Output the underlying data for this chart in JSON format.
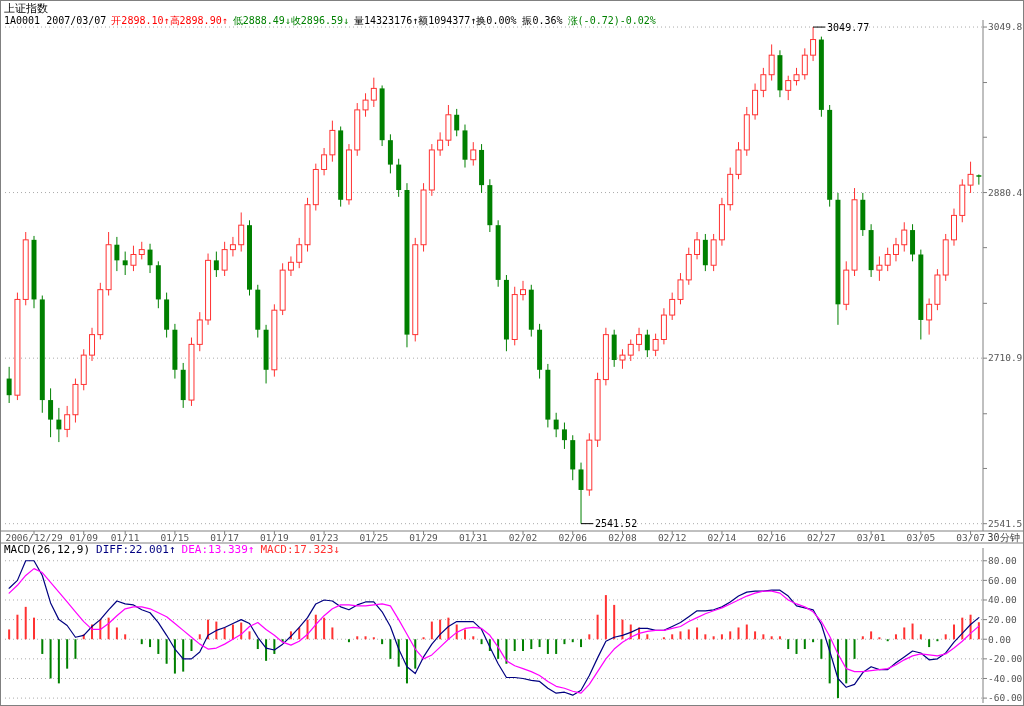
{
  "chart_data": [
    {
      "type": "candlestick",
      "title": "上证指数",
      "xlabel": "30分钟",
      "annotations": [
        "1A0001 2007/03/07",
        "开2898.10↑高2898.90↑",
        "低2888.49↓收2896.59↓",
        "量14323176↑额1094377↑换0.00% 振0.36%",
        "涨(-0.72)-0.02%",
        "3049.77",
        "2541.52"
      ],
      "categories": [
        null,
        null,
        null,
        "2006/12/29",
        null,
        null,
        null,
        null,
        null,
        "01/09",
        null,
        null,
        null,
        null,
        "01/11",
        null,
        null,
        null,
        null,
        null,
        "01/15",
        null,
        null,
        null,
        null,
        null,
        "01/17",
        null,
        null,
        null,
        null,
        null,
        "01/19",
        null,
        null,
        null,
        null,
        null,
        "01/23",
        null,
        null,
        null,
        null,
        null,
        "01/25",
        null,
        null,
        null,
        null,
        null,
        "01/29",
        null,
        null,
        null,
        null,
        null,
        "01/31",
        null,
        null,
        null,
        null,
        null,
        "02/02",
        null,
        null,
        null,
        null,
        null,
        "02/06",
        null,
        null,
        null,
        null,
        null,
        "02/08",
        null,
        null,
        null,
        null,
        null,
        "02/12",
        null,
        null,
        null,
        null,
        null,
        "02/14",
        null,
        null,
        null,
        null,
        null,
        "02/16",
        null,
        null,
        null,
        null,
        null,
        "02/27",
        null,
        null,
        null,
        null,
        null,
        "03/01",
        null,
        null,
        null,
        null,
        null,
        "03/05",
        null,
        null,
        null,
        null,
        null,
        "03/07",
        null
      ],
      "ohlc": [
        [
          2690,
          2702,
          2665,
          2673
        ],
        [
          2673,
          2778,
          2668,
          2771
        ],
        [
          2771,
          2840,
          2765,
          2832
        ],
        [
          2832,
          2836,
          2762,
          2771
        ],
        [
          2771,
          2775,
          2655,
          2668
        ],
        [
          2668,
          2680,
          2630,
          2648
        ],
        [
          2648,
          2660,
          2625,
          2638
        ],
        [
          2638,
          2662,
          2630,
          2653
        ],
        [
          2653,
          2690,
          2645,
          2684
        ],
        [
          2684,
          2720,
          2678,
          2714
        ],
        [
          2714,
          2742,
          2708,
          2735
        ],
        [
          2735,
          2788,
          2730,
          2781
        ],
        [
          2781,
          2840,
          2775,
          2827
        ],
        [
          2827,
          2835,
          2800,
          2811
        ],
        [
          2811,
          2820,
          2796,
          2806
        ],
        [
          2806,
          2826,
          2800,
          2817
        ],
        [
          2817,
          2830,
          2812,
          2822
        ],
        [
          2822,
          2828,
          2798,
          2806
        ],
        [
          2806,
          2810,
          2762,
          2771
        ],
        [
          2771,
          2778,
          2732,
          2740
        ],
        [
          2740,
          2746,
          2690,
          2699
        ],
        [
          2699,
          2706,
          2660,
          2668
        ],
        [
          2668,
          2732,
          2662,
          2725
        ],
        [
          2725,
          2758,
          2718,
          2750
        ],
        [
          2750,
          2818,
          2745,
          2811
        ],
        [
          2811,
          2820,
          2794,
          2801
        ],
        [
          2801,
          2830,
          2795,
          2822
        ],
        [
          2822,
          2835,
          2815,
          2827
        ],
        [
          2827,
          2860,
          2820,
          2847
        ],
        [
          2847,
          2852,
          2775,
          2781
        ],
        [
          2781,
          2786,
          2732,
          2740
        ],
        [
          2740,
          2745,
          2685,
          2699
        ],
        [
          2699,
          2766,
          2692,
          2760
        ],
        [
          2760,
          2808,
          2755,
          2801
        ],
        [
          2801,
          2815,
          2795,
          2809
        ],
        [
          2809,
          2834,
          2803,
          2827
        ],
        [
          2827,
          2875,
          2820,
          2868
        ],
        [
          2868,
          2910,
          2862,
          2904
        ],
        [
          2904,
          2926,
          2898,
          2919
        ],
        [
          2919,
          2954,
          2912,
          2944
        ],
        [
          2944,
          2948,
          2866,
          2873
        ],
        [
          2873,
          2930,
          2868,
          2924
        ],
        [
          2924,
          2972,
          2918,
          2965
        ],
        [
          2965,
          2982,
          2958,
          2975
        ],
        [
          2975,
          2998,
          2968,
          2987
        ],
        [
          2987,
          2990,
          2928,
          2934
        ],
        [
          2934,
          2940,
          2900,
          2909
        ],
        [
          2909,
          2915,
          2876,
          2883
        ],
        [
          2883,
          2890,
          2722,
          2735
        ],
        [
          2735,
          2834,
          2728,
          2827
        ],
        [
          2827,
          2890,
          2820,
          2883
        ],
        [
          2883,
          2930,
          2877,
          2924
        ],
        [
          2924,
          2942,
          2918,
          2934
        ],
        [
          2934,
          2970,
          2928,
          2960
        ],
        [
          2960,
          2966,
          2938,
          2944
        ],
        [
          2944,
          2950,
          2906,
          2914
        ],
        [
          2914,
          2932,
          2908,
          2924
        ],
        [
          2924,
          2930,
          2880,
          2888
        ],
        [
          2888,
          2894,
          2840,
          2847
        ],
        [
          2847,
          2852,
          2784,
          2791
        ],
        [
          2791,
          2796,
          2718,
          2730
        ],
        [
          2730,
          2784,
          2724,
          2776
        ],
        [
          2776,
          2790,
          2770,
          2781
        ],
        [
          2781,
          2786,
          2733,
          2740
        ],
        [
          2740,
          2746,
          2690,
          2699
        ],
        [
          2699,
          2705,
          2640,
          2648
        ],
        [
          2648,
          2655,
          2630,
          2638
        ],
        [
          2638,
          2645,
          2618,
          2627
        ],
        [
          2627,
          2632,
          2586,
          2597
        ],
        [
          2597,
          2604,
          2541.52,
          2576
        ],
        [
          2576,
          2634,
          2570,
          2627
        ],
        [
          2627,
          2696,
          2620,
          2689
        ],
        [
          2689,
          2742,
          2683,
          2735
        ],
        [
          2735,
          2740,
          2702,
          2709
        ],
        [
          2709,
          2720,
          2700,
          2714
        ],
        [
          2714,
          2730,
          2708,
          2725
        ],
        [
          2725,
          2742,
          2718,
          2735
        ],
        [
          2735,
          2740,
          2712,
          2719
        ],
        [
          2719,
          2736,
          2713,
          2730
        ],
        [
          2730,
          2762,
          2725,
          2755
        ],
        [
          2755,
          2778,
          2750,
          2771
        ],
        [
          2771,
          2798,
          2766,
          2791
        ],
        [
          2791,
          2824,
          2786,
          2817
        ],
        [
          2817,
          2840,
          2812,
          2832
        ],
        [
          2832,
          2838,
          2800,
          2806
        ],
        [
          2806,
          2838,
          2800,
          2832
        ],
        [
          2832,
          2875,
          2826,
          2868
        ],
        [
          2868,
          2906,
          2862,
          2899
        ],
        [
          2899,
          2932,
          2894,
          2924
        ],
        [
          2924,
          2968,
          2918,
          2960
        ],
        [
          2960,
          2992,
          2955,
          2985
        ],
        [
          2985,
          3008,
          2978,
          3001
        ],
        [
          3001,
          3032,
          2995,
          3021
        ],
        [
          3021,
          3026,
          2978,
          2985
        ],
        [
          2985,
          3000,
          2975,
          2995
        ],
        [
          2995,
          3008,
          2990,
          3001
        ],
        [
          3001,
          3028,
          2996,
          3021
        ],
        [
          3021,
          3049.77,
          3015,
          3037
        ],
        [
          3037,
          3040,
          2958,
          2965
        ],
        [
          2965,
          2970,
          2866,
          2873
        ],
        [
          2873,
          2880,
          2745,
          2766
        ],
        [
          2766,
          2810,
          2760,
          2801
        ],
        [
          2801,
          2885,
          2795,
          2873
        ],
        [
          2873,
          2880,
          2836,
          2842
        ],
        [
          2842,
          2848,
          2794,
          2801
        ],
        [
          2801,
          2815,
          2790,
          2806
        ],
        [
          2806,
          2824,
          2800,
          2817
        ],
        [
          2817,
          2834,
          2810,
          2827
        ],
        [
          2827,
          2850,
          2820,
          2842
        ],
        [
          2842,
          2848,
          2810,
          2817
        ],
        [
          2817,
          2822,
          2730,
          2750
        ],
        [
          2750,
          2772,
          2735,
          2766
        ],
        [
          2766,
          2802,
          2760,
          2796
        ],
        [
          2796,
          2838,
          2790,
          2832
        ],
        [
          2832,
          2864,
          2826,
          2857
        ],
        [
          2857,
          2894,
          2850,
          2888
        ],
        [
          2888,
          2912,
          2880,
          2899
        ],
        [
          2898.1,
          2898.9,
          2888.49,
          2896.59
        ]
      ],
      "colors": [
        "#008000",
        "#ff3232",
        "#ff3232",
        "#008000",
        "#008000",
        "#008000",
        "#008000",
        "#ff3232",
        "#ff3232",
        "#ff3232",
        "#ff3232",
        "#ff3232",
        "#ff3232",
        "#008000",
        "#008000",
        "#ff3232",
        "#ff3232",
        "#008000",
        "#008000",
        "#008000",
        "#008000",
        "#008000",
        "#ff3232",
        "#ff3232",
        "#ff3232",
        "#008000",
        "#ff3232",
        "#ff3232",
        "#ff3232",
        "#008000",
        "#008000",
        "#008000",
        "#ff3232",
        "#ff3232",
        "#ff3232",
        "#ff3232",
        "#ff3232",
        "#ff3232",
        "#ff3232",
        "#ff3232",
        "#008000",
        "#ff3232",
        "#ff3232",
        "#ff3232",
        "#ff3232",
        "#008000",
        "#008000",
        "#008000",
        "#008000",
        "#ff3232",
        "#ff3232",
        "#ff3232",
        "#ff3232",
        "#ff3232",
        "#008000",
        "#008000",
        "#ff3232",
        "#008000",
        "#008000",
        "#008000",
        "#008000",
        "#ff3232",
        "#ff3232",
        "#008000",
        "#008000",
        "#008000",
        "#008000",
        "#008000",
        "#008000",
        "#008000",
        "#ff3232",
        "#ff3232",
        "#ff3232",
        "#008000",
        "#ff3232",
        "#ff3232",
        "#ff3232",
        "#008000",
        "#ff3232",
        "#ff3232",
        "#ff3232",
        "#ff3232",
        "#ff3232",
        "#ff3232",
        "#008000",
        "#ff3232",
        "#ff3232",
        "#ff3232",
        "#ff3232",
        "#ff3232",
        "#ff3232",
        "#ff3232",
        "#ff3232",
        "#008000",
        "#ff3232",
        "#ff3232",
        "#ff3232",
        "#ff3232",
        "#008000",
        "#008000",
        "#008000",
        "#ff3232",
        "#ff3232",
        "#008000",
        "#008000",
        "#ff3232",
        "#ff3232",
        "#ff3232",
        "#ff3232",
        "#008000",
        "#008000",
        "#ff3232",
        "#ff3232",
        "#ff3232",
        "#ff3232",
        "#ff3232",
        "#ff3232",
        "#008000"
      ],
      "ylim": [
        2534,
        3057
      ],
      "yticks": [
        2541.5,
        {
          "value": 2598,
          "label": null
        },
        {
          "value": 2654,
          "label": null
        },
        2710.9,
        {
          "value": 2767,
          "label": null
        },
        {
          "value": 2824,
          "label": null
        },
        2880.4,
        {
          "value": 2937,
          "label": null
        },
        {
          "value": 2993,
          "label": null
        },
        3049.8
      ],
      "grid": "y"
    },
    {
      "type": "bar",
      "title": "MACD(26,12,9)",
      "legend": "top left",
      "categories": [
        null,
        null,
        null,
        null,
        null,
        null,
        null,
        null,
        null,
        null,
        null,
        null,
        null,
        null,
        null,
        null,
        null,
        null,
        null,
        null,
        null,
        null,
        null,
        null,
        null,
        null,
        null,
        null,
        null,
        null,
        null,
        null,
        null,
        null,
        null,
        null,
        null,
        null,
        null,
        null,
        null,
        null,
        null,
        null,
        null,
        null,
        null,
        null,
        null,
        null,
        null,
        null,
        null,
        null,
        null,
        null,
        null,
        null,
        null,
        null,
        null,
        null,
        null,
        null,
        null,
        null,
        null,
        null,
        null,
        null,
        null,
        null,
        null,
        null,
        null,
        null,
        null,
        null,
        null,
        null,
        null,
        null,
        null,
        null,
        null,
        null,
        null,
        null,
        null,
        null,
        null,
        null,
        null,
        null,
        null,
        null,
        null,
        null,
        null,
        null,
        null,
        null,
        null,
        null,
        null,
        null,
        null,
        null,
        null,
        null,
        null,
        null,
        null,
        null,
        null,
        null,
        null,
        null
      ],
      "series": [
        {
          "name": "DIFF:22.001↑",
          "type": "line",
          "color": "#000080",
          "values": [
            52,
            60,
            80,
            80,
            65,
            37,
            20,
            14,
            2,
            4,
            13,
            20,
            30,
            39,
            36,
            35,
            30,
            27,
            17,
            4,
            -10,
            -20,
            -20,
            -13,
            4,
            9,
            12,
            16,
            20,
            16,
            2,
            -9,
            -11,
            -5,
            3,
            12,
            22,
            36,
            40,
            39,
            33,
            30,
            35,
            38,
            38,
            28,
            13,
            -10,
            -28,
            -35,
            -18,
            -5,
            5,
            13,
            18,
            18,
            18,
            10,
            -8,
            -25,
            -39,
            -39,
            -40,
            -42,
            -43,
            -50,
            -55,
            -54,
            -57,
            -52,
            -37,
            -19,
            -2,
            2,
            4,
            7,
            11,
            11,
            9,
            9,
            13,
            17,
            23,
            29,
            29,
            30,
            33,
            38,
            44,
            48,
            49,
            49,
            50,
            50,
            44,
            34,
            32,
            30,
            15,
            -12,
            -40,
            -49,
            -46,
            -34,
            -28,
            -31,
            -31,
            -24,
            -18,
            -12,
            -14,
            -21,
            -20,
            -14,
            -3,
            6,
            15,
            22.001
          ]
        },
        {
          "name": "DEA:13.339↑",
          "type": "line",
          "color": "#ff00ff",
          "values": [
            47,
            55,
            65,
            72,
            68,
            58,
            48,
            38,
            28,
            18,
            10,
            10,
            16,
            24,
            31,
            33,
            33,
            31,
            27,
            23,
            16,
            9,
            2,
            -5,
            -10,
            -9,
            -5,
            0,
            5,
            13,
            17,
            10,
            4,
            -3,
            -6,
            -2,
            5,
            15,
            24,
            31,
            35,
            35,
            34,
            34,
            35,
            36,
            34,
            20,
            5,
            -10,
            -20,
            -16,
            -8,
            0,
            7,
            11,
            12,
            11,
            4,
            -8,
            -22,
            -27,
            -30,
            -33,
            -37,
            -43,
            -48,
            -50,
            -53,
            -55,
            -46,
            -33,
            -20,
            -10,
            -3,
            2,
            6,
            8,
            9,
            9,
            11,
            13,
            18,
            22,
            26,
            29,
            32,
            36,
            40,
            44,
            47,
            49,
            49,
            47,
            40,
            36,
            33,
            28,
            18,
            3,
            -15,
            -30,
            -33,
            -33,
            -32,
            -31,
            -30,
            -26,
            -21,
            -17,
            -15,
            -16,
            -17,
            -15,
            -9,
            -2,
            6,
            13.339
          ]
        },
        {
          "name": "MACD:17.323↓",
          "type": "bar",
          "values": [
            10,
            25,
            33,
            22,
            -15,
            -40,
            -45,
            -30,
            -20,
            5,
            15,
            20,
            22,
            12,
            5,
            0,
            -5,
            -8,
            -15,
            -25,
            -35,
            -33,
            -12,
            5,
            20,
            18,
            12,
            15,
            17,
            8,
            -10,
            -22,
            -15,
            -3,
            8,
            12,
            20,
            25,
            22,
            12,
            0,
            -3,
            3,
            3,
            2,
            -5,
            -20,
            -28,
            -45,
            -30,
            2,
            18,
            20,
            22,
            15,
            10,
            3,
            -5,
            -12,
            -20,
            -25,
            -12,
            -12,
            -10,
            -8,
            -15,
            -15,
            -5,
            -3,
            -8,
            5,
            25,
            45,
            35,
            20,
            15,
            12,
            5,
            0,
            2,
            5,
            8,
            10,
            12,
            5,
            3,
            5,
            8,
            12,
            15,
            8,
            5,
            3,
            3,
            -10,
            -15,
            -10,
            -3,
            -20,
            -45,
            -60,
            -45,
            -20,
            3,
            8,
            2,
            -2,
            5,
            12,
            16,
            5,
            -8,
            -2,
            5,
            15,
            22,
            25,
            17.323
          ],
          "colors": [
            "#ff3232",
            "#ff3232",
            "#ff3232",
            "#ff3232",
            "#008000",
            "#008000",
            "#008000",
            "#008000",
            "#008000",
            "#ff3232",
            "#ff3232",
            "#ff3232",
            "#ff3232",
            "#ff3232",
            "#ff3232",
            "#ff3232",
            "#008000",
            "#008000",
            "#008000",
            "#008000",
            "#008000",
            "#008000",
            "#008000",
            "#ff3232",
            "#ff3232",
            "#ff3232",
            "#ff3232",
            "#ff3232",
            "#ff3232",
            "#ff3232",
            "#008000",
            "#008000",
            "#008000",
            "#008000",
            "#ff3232",
            "#ff3232",
            "#ff3232",
            "#ff3232",
            "#ff3232",
            "#ff3232",
            "#ff3232",
            "#008000",
            "#ff3232",
            "#ff3232",
            "#ff3232",
            "#008000",
            "#008000",
            "#008000",
            "#008000",
            "#008000",
            "#ff3232",
            "#ff3232",
            "#ff3232",
            "#ff3232",
            "#ff3232",
            "#ff3232",
            "#ff3232",
            "#008000",
            "#008000",
            "#008000",
            "#008000",
            "#008000",
            "#008000",
            "#008000",
            "#008000",
            "#008000",
            "#008000",
            "#008000",
            "#008000",
            "#008000",
            "#ff3232",
            "#ff3232",
            "#ff3232",
            "#ff3232",
            "#ff3232",
            "#ff3232",
            "#ff3232",
            "#ff3232",
            "#ff3232",
            "#ff3232",
            "#ff3232",
            "#ff3232",
            "#ff3232",
            "#ff3232",
            "#ff3232",
            "#ff3232",
            "#ff3232",
            "#ff3232",
            "#ff3232",
            "#ff3232",
            "#ff3232",
            "#ff3232",
            "#ff3232",
            "#ff3232",
            "#008000",
            "#008000",
            "#008000",
            "#008000",
            "#008000",
            "#008000",
            "#008000",
            "#008000",
            "#008000",
            "#ff3232",
            "#ff3232",
            "#ff3232",
            "#008000",
            "#ff3232",
            "#ff3232",
            "#ff3232",
            "#ff3232",
            "#008000",
            "#008000",
            "#ff3232",
            "#ff3232",
            "#ff3232",
            "#ff3232",
            "#ff3232"
          ]
        }
      ],
      "ylim": [
        -65,
        93
      ],
      "yticks": [
        {
          "value": -60,
          "label": "-60.00"
        },
        {
          "value": -40,
          "label": "-40.00"
        },
        {
          "value": -20,
          "label": "-20.00"
        },
        {
          "value": 0,
          "label": "0.00"
        },
        {
          "value": 20,
          "label": "20.00"
        },
        {
          "value": 40,
          "label": "40.00"
        },
        {
          "value": 60,
          "label": "60.00"
        },
        {
          "value": 80,
          "label": "80.00"
        }
      ],
      "grid": "y"
    }
  ]
}
